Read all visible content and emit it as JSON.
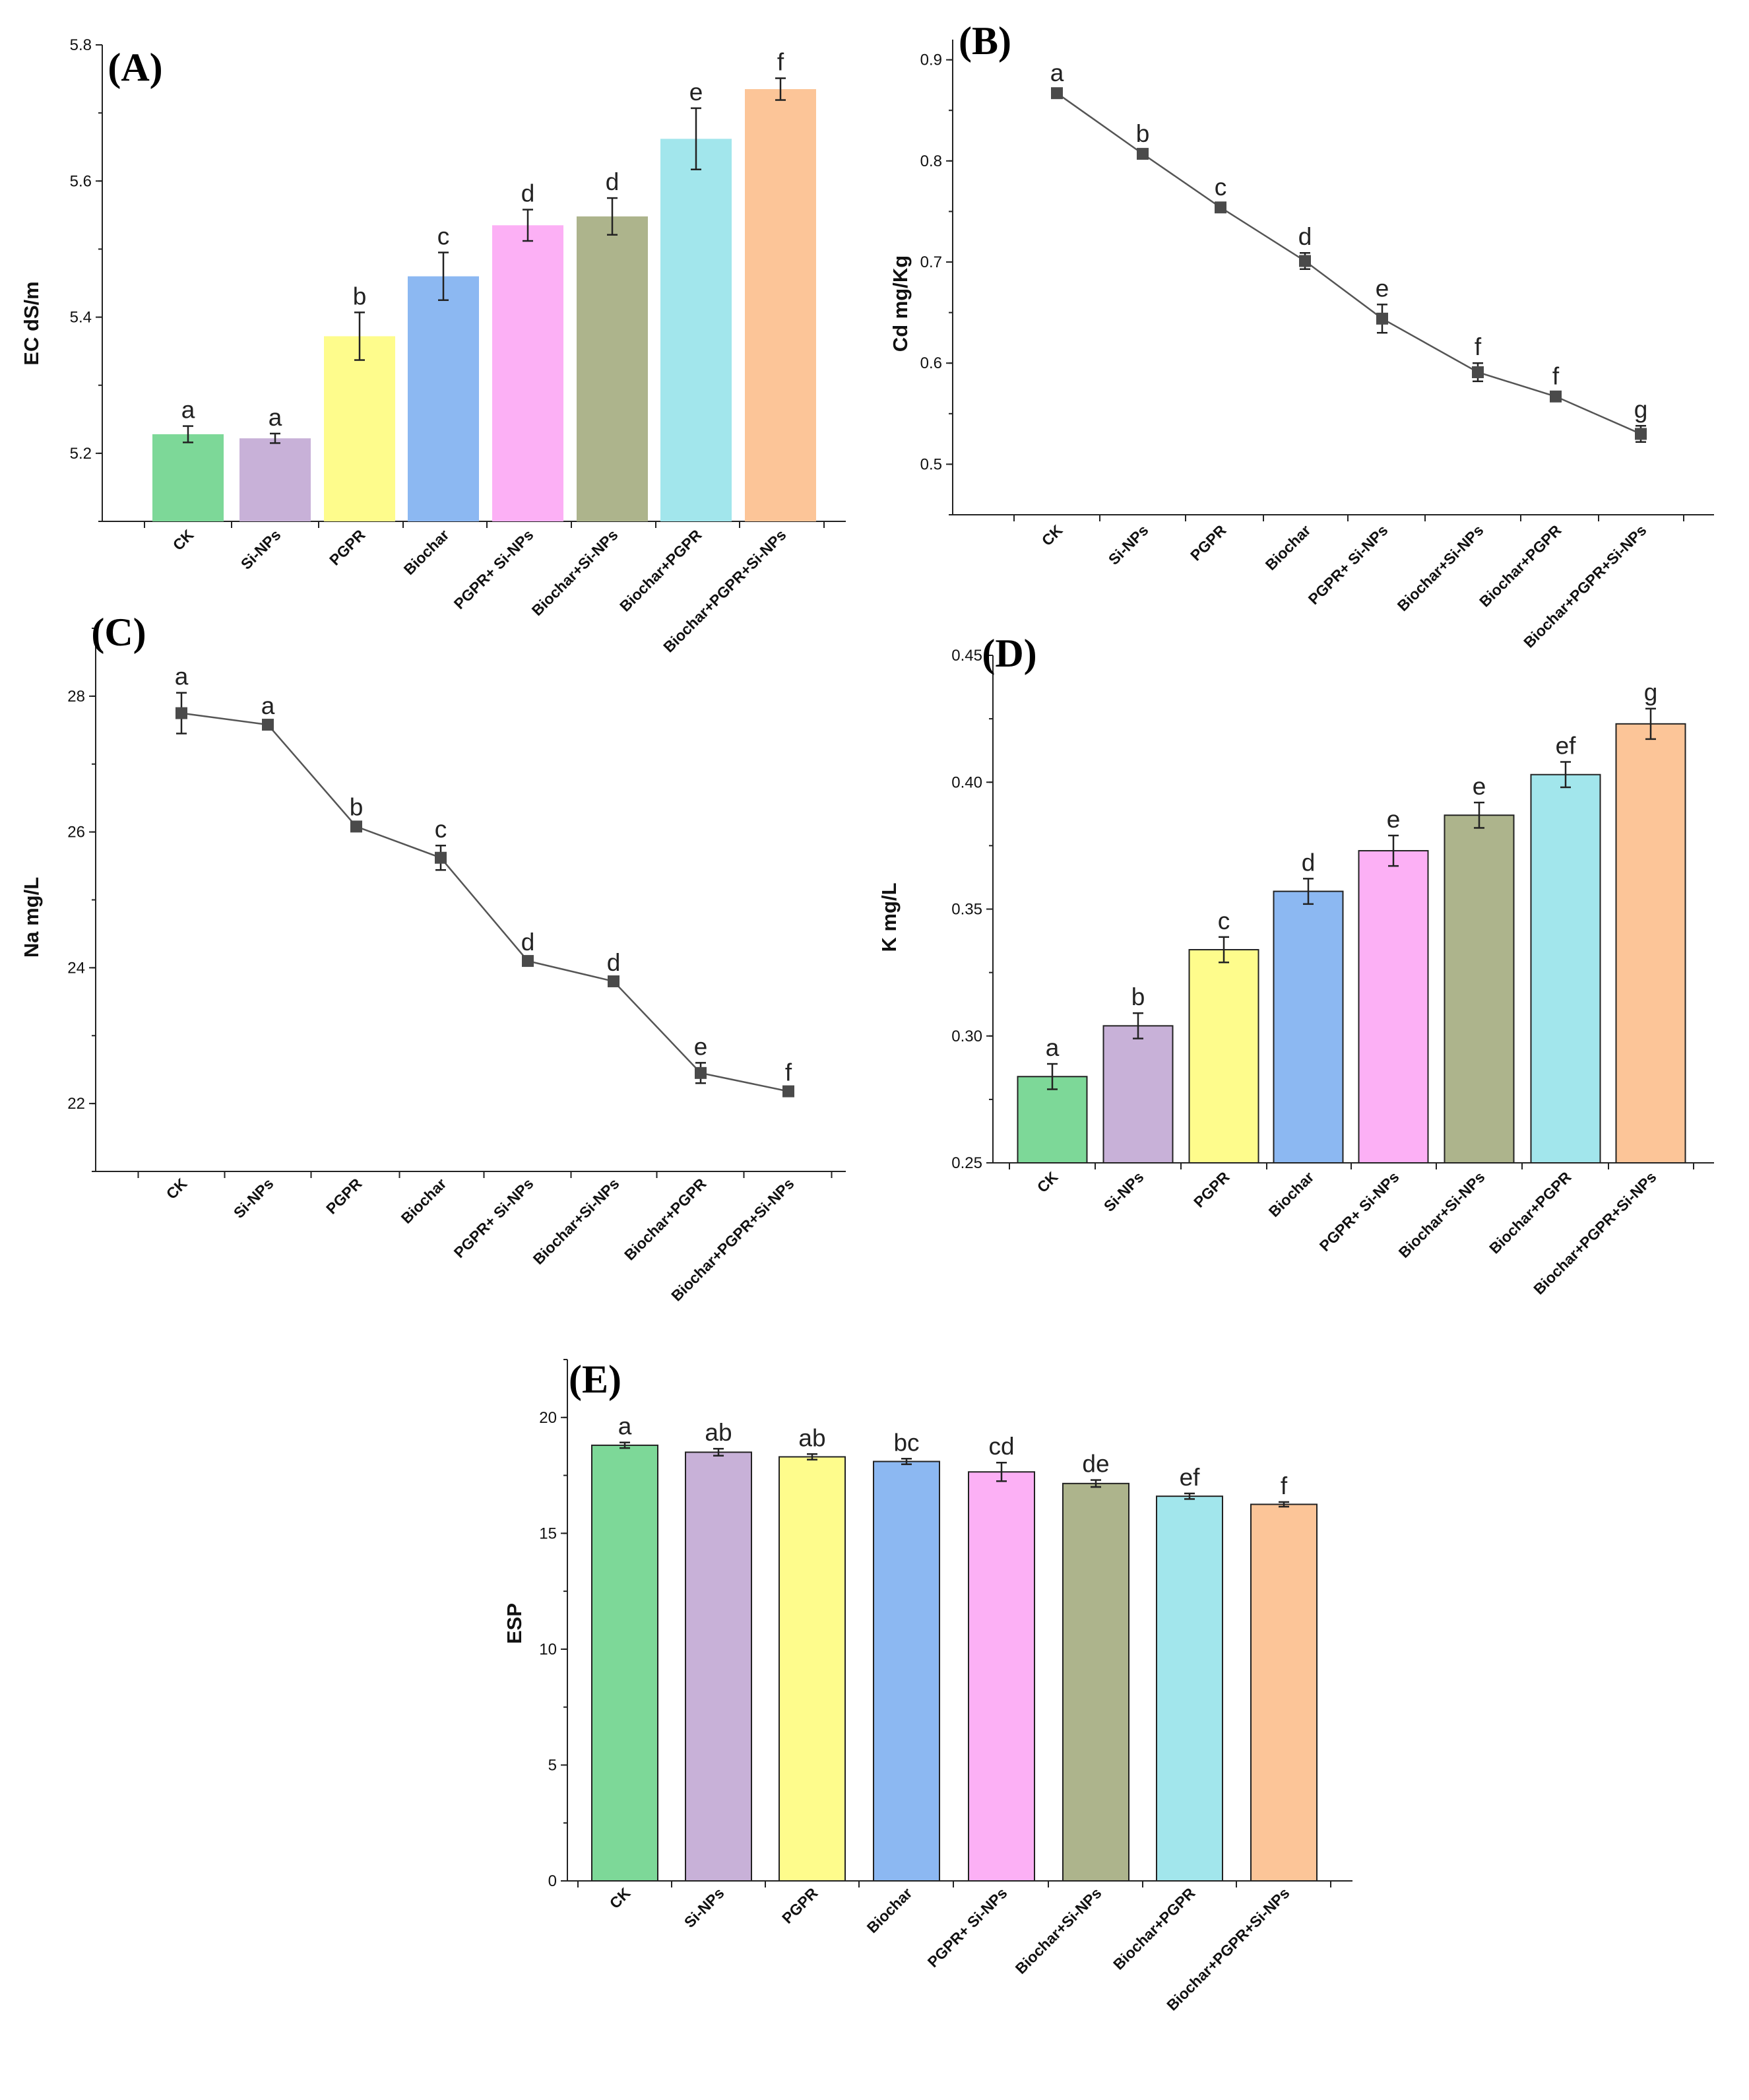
{
  "chart_data": [
    {
      "panel": "(A)",
      "type": "bar",
      "ylabel": "EC dS/m",
      "ylim": [
        5.1,
        5.8
      ],
      "yticks": [
        "5.2",
        "5.4",
        "5.6",
        "5.8"
      ],
      "categories": [
        "CK",
        "Si-NPs",
        "PGPR",
        "Biochar",
        "PGPR+ Si-NPs",
        "Biochar+Si-NPs",
        "Biochar+PGPR",
        "Biochar+PGPR+Si-NPs"
      ],
      "values": [
        5.228,
        5.222,
        5.372,
        5.46,
        5.535,
        5.548,
        5.662,
        5.735
      ],
      "errors": [
        0.012,
        0.007,
        0.035,
        0.035,
        0.023,
        0.027,
        0.045,
        0.016
      ],
      "letters": [
        "a",
        "a",
        "b",
        "c",
        "d",
        "d",
        "e",
        "f"
      ],
      "colors": [
        "#7dd898",
        "#c8b1d8",
        "#fefc8c",
        "#8cb8f2",
        "#fcb0f5",
        "#adb48c",
        "#a2e6ec",
        "#fcc598"
      ]
    },
    {
      "panel": "(B)",
      "type": "line",
      "ylabel": "Cd mg/Kg",
      "ylim": [
        0.45,
        0.92
      ],
      "yticks": [
        "0.5",
        "0.6",
        "0.7",
        "0.8",
        "0.9"
      ],
      "categories": [
        "CK",
        "Si-NPs",
        "PGPR",
        "Biochar",
        "PGPR+ Si-NPs",
        "Biochar+Si-NPs",
        "Biochar+PGPR",
        "Biochar+PGPR+Si-NPs"
      ],
      "values": [
        0.867,
        0.807,
        0.754,
        0.701,
        0.644,
        0.591,
        0.567,
        0.53
      ],
      "errors": [
        0.004,
        0.004,
        0.004,
        0.008,
        0.014,
        0.009,
        0.004,
        0.008
      ],
      "letters": [
        "a",
        "b",
        "c",
        "d",
        "e",
        "f",
        "f",
        "g"
      ]
    },
    {
      "panel": "(C)",
      "type": "line",
      "ylabel": "Na mg/L",
      "ylim": [
        21,
        29
      ],
      "yticks": [
        "22",
        "24",
        "26",
        "28"
      ],
      "categories": [
        "CK",
        "Si-NPs",
        "PGPR",
        "Biochar",
        "PGPR+ Si-NPs",
        "Biochar+Si-NPs",
        "Biochar+PGPR",
        "Biochar+PGPR+Si-NPs"
      ],
      "values": [
        27.75,
        27.58,
        26.08,
        25.62,
        24.1,
        23.8,
        22.45,
        22.18
      ],
      "errors": [
        0.3,
        0.04,
        0.05,
        0.18,
        0.04,
        0.04,
        0.15,
        0.04
      ],
      "letters": [
        "a",
        "a",
        "b",
        "c",
        "d",
        "d",
        "e",
        "f"
      ]
    },
    {
      "panel": "(D)",
      "type": "bar",
      "ylabel": "K mg/L",
      "ylim": [
        0.25,
        0.45
      ],
      "yticks": [
        "0.25",
        "0.30",
        "0.35",
        "0.40",
        "0.45"
      ],
      "categories": [
        "CK",
        "Si-NPs",
        "PGPR",
        "Biochar",
        "PGPR+ Si-NPs",
        "Biochar+Si-NPs",
        "Biochar+PGPR",
        "Biochar+PGPR+Si-NPs"
      ],
      "values": [
        0.284,
        0.304,
        0.334,
        0.357,
        0.373,
        0.387,
        0.403,
        0.423
      ],
      "errors": [
        0.005,
        0.005,
        0.005,
        0.005,
        0.006,
        0.005,
        0.005,
        0.006
      ],
      "letters": [
        "a",
        "b",
        "c",
        "d",
        "e",
        "e",
        "ef",
        "g"
      ],
      "colors": [
        "#7dd898",
        "#c8b1d8",
        "#fefc8c",
        "#8cb8f2",
        "#fcb0f5",
        "#adb48c",
        "#a2e6ec",
        "#fcc598"
      ]
    },
    {
      "panel": "(E)",
      "type": "bar",
      "ylabel": "ESP",
      "ylim": [
        0,
        22.5
      ],
      "yticks": [
        "0",
        "5",
        "10",
        "15",
        "20"
      ],
      "categories": [
        "CK",
        "Si-NPs",
        "PGPR",
        "Biochar",
        "PGPR+ Si-NPs",
        "Biochar+Si-NPs",
        "Biochar+PGPR",
        "Biochar+PGPR+Si-NPs"
      ],
      "values": [
        18.8,
        18.5,
        18.3,
        18.1,
        17.65,
        17.15,
        16.6,
        16.25
      ],
      "errors": [
        0.12,
        0.15,
        0.12,
        0.12,
        0.4,
        0.15,
        0.12,
        0.1
      ],
      "letters": [
        "a",
        "ab",
        "ab",
        "bc",
        "cd",
        "de",
        "ef",
        "f"
      ],
      "colors": [
        "#7dd898",
        "#c8b1d8",
        "#fefc8c",
        "#8cb8f2",
        "#fcb0f5",
        "#adb48c",
        "#a2e6ec",
        "#fcc598"
      ]
    }
  ]
}
